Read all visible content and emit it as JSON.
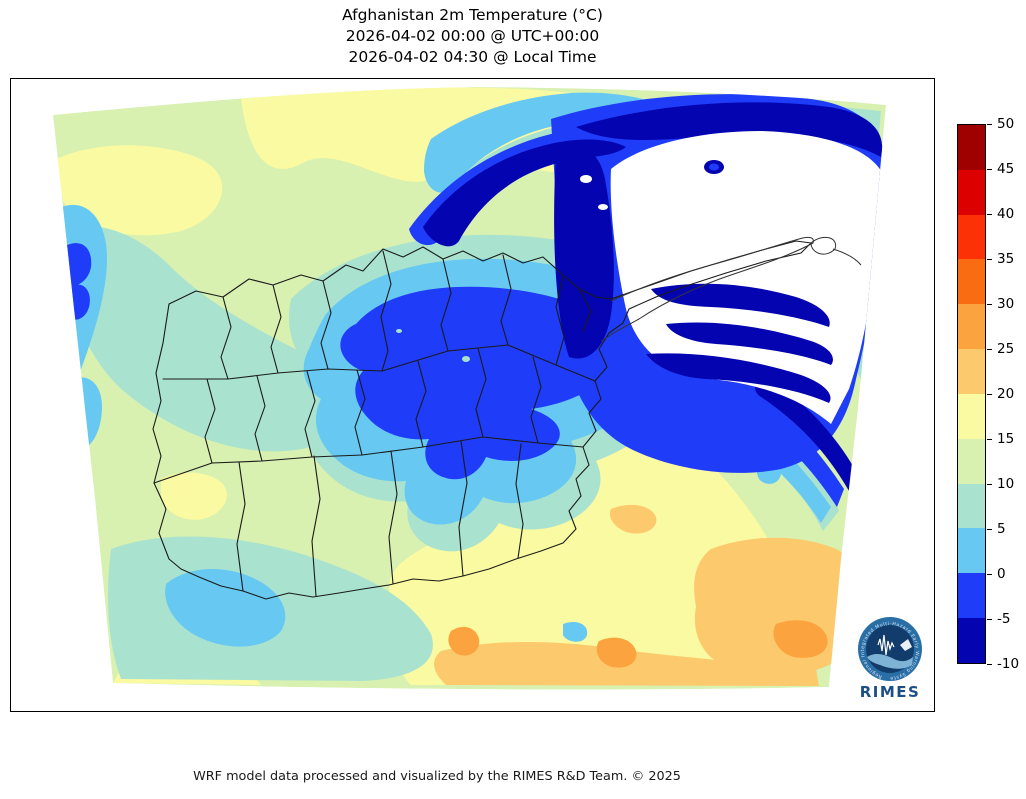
{
  "title": {
    "line1": "Afghanistan 2m Temperature (°C)",
    "line2": "2026-04-02 00:00 @ UTC+00:00",
    "line3": "2026-04-02 04:30 @ Local Time"
  },
  "footer": {
    "credit": "WRF model data processed and visualized by the RIMES R&D Team. © 2025"
  },
  "logo": {
    "name": "RIMES",
    "ring_text": "Regional Integrated Multi-Hazard Early Warning System"
  },
  "colorbar": {
    "units": "°C",
    "ticks": [
      "50",
      "45",
      "40",
      "35",
      "30",
      "25",
      "20",
      "15",
      "10",
      "5",
      "0",
      "-5",
      "-10"
    ],
    "segments": [
      {
        "range": "45 to 50",
        "color": "#9f0000"
      },
      {
        "range": "40 to 45",
        "color": "#dd0000"
      },
      {
        "range": "35 to 40",
        "color": "#fc3206"
      },
      {
        "range": "30 to 35",
        "color": "#fa6c11"
      },
      {
        "range": "25 to 30",
        "color": "#fba43f"
      },
      {
        "range": "20 to 25",
        "color": "#fcc96c"
      },
      {
        "range": "15 to 20",
        "color": "#fafaa2"
      },
      {
        "range": "10 to 15",
        "color": "#d8f0b0"
      },
      {
        "range": "5 to 10",
        "color": "#a9e3cf"
      },
      {
        "range": "0 to 5",
        "color": "#67c8f2"
      },
      {
        "range": "-5 to 0",
        "color": "#1f3cf8"
      },
      {
        "range": "-10 to -5",
        "color": "#0404b0"
      }
    ]
  },
  "palette": {
    "t_m10": "#0404b0",
    "t_m5": "#1f3cf8",
    "t_0": "#67c8f2",
    "t_5": "#a9e3cf",
    "t_10": "#d8f0b0",
    "t_15": "#fafaa2",
    "t_20": "#fcc96c",
    "t_25": "#fba43f",
    "offscale_low": "#ffffff",
    "boundary": "#1a1a1a",
    "logo_blue": "#1d4f87"
  }
}
